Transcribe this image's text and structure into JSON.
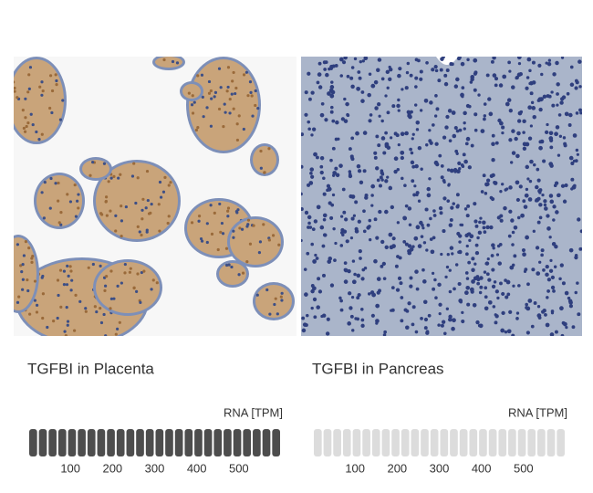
{
  "panels": [
    {
      "caption": "TGFBI in Placenta",
      "rna_label": "RNA [TPM]",
      "xlim": [
        0,
        600
      ],
      "xticks": [
        100,
        200,
        300,
        400,
        500
      ],
      "bar_color": "#4d4d4d"
    },
    {
      "caption": "TGFBI in Pancreas",
      "rna_label": "RNA [TPM]",
      "xlim": [
        0,
        600
      ],
      "xticks": [
        100,
        200,
        300,
        400,
        500
      ],
      "bar_color": "#dcdcdc"
    }
  ]
}
